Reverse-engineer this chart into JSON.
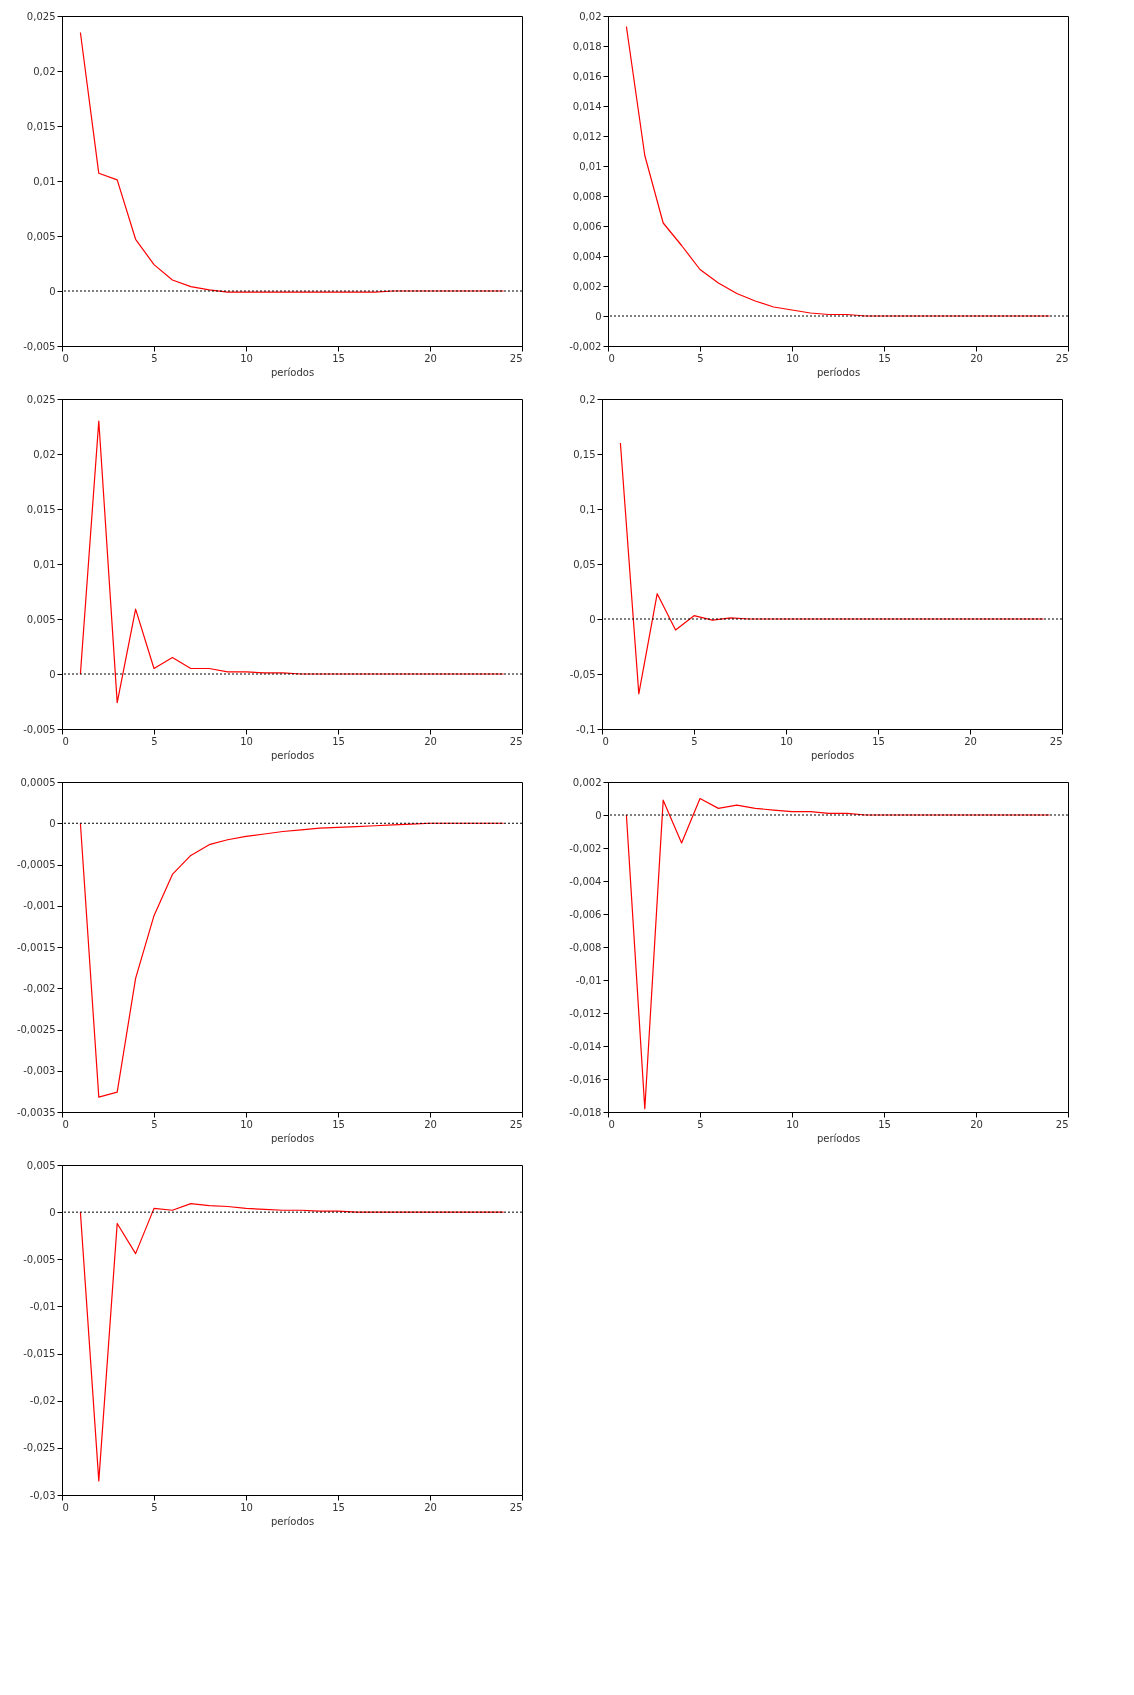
{
  "chart_data": [
    {
      "type": "line",
      "xlabel": "períodos",
      "x": [
        1,
        2,
        3,
        4,
        5,
        6,
        7,
        8,
        9,
        10,
        11,
        12,
        13,
        14,
        15,
        16,
        17,
        18,
        19,
        20,
        21,
        22,
        23,
        24
      ],
      "xlim": [
        0,
        25
      ],
      "xticks": [
        0,
        5,
        10,
        15,
        20,
        25
      ],
      "ylim": [
        -0.005,
        0.025
      ],
      "yticks": [
        {
          "value": -0.005,
          "label": "-0,005"
        },
        {
          "value": 0,
          "label": "0"
        },
        {
          "value": 0.005,
          "label": "0,005"
        },
        {
          "value": 0.01,
          "label": "0,01"
        },
        {
          "value": 0.015,
          "label": "0,015"
        },
        {
          "value": 0.02,
          "label": "0,02"
        },
        {
          "value": 0.025,
          "label": "0,025"
        }
      ],
      "ref_lines": [
        {
          "axis": "y",
          "value": 0,
          "line_style": "dotted",
          "color": "#000000"
        }
      ],
      "series": [
        {
          "color": "#ff0000",
          "values": [
            0.0235,
            0.0107,
            0.0101,
            0.0047,
            0.0024,
            0.001,
            0.0004,
            0.0001,
            -0.0001,
            -0.0001,
            -0.0001,
            -0.0001,
            -0.0001,
            -0.0001,
            -0.0001,
            -0.0001,
            -0.0001,
            0,
            0,
            0,
            0,
            0,
            0,
            0
          ]
        }
      ]
    },
    {
      "type": "line",
      "xlabel": "períodos",
      "x": [
        1,
        2,
        3,
        4,
        5,
        6,
        7,
        8,
        9,
        10,
        11,
        12,
        13,
        14,
        15,
        16,
        17,
        18,
        19,
        20,
        21,
        22,
        23,
        24
      ],
      "xlim": [
        0,
        25
      ],
      "xticks": [
        0,
        5,
        10,
        15,
        20,
        25
      ],
      "ylim": [
        -0.002,
        0.02
      ],
      "yticks": [
        {
          "value": -0.002,
          "label": "-0,002"
        },
        {
          "value": 0,
          "label": "0"
        },
        {
          "value": 0.002,
          "label": "0,002"
        },
        {
          "value": 0.004,
          "label": "0,004"
        },
        {
          "value": 0.006,
          "label": "0,006"
        },
        {
          "value": 0.008,
          "label": "0,008"
        },
        {
          "value": 0.01,
          "label": "0,01"
        },
        {
          "value": 0.012,
          "label": "0,012"
        },
        {
          "value": 0.014,
          "label": "0,014"
        },
        {
          "value": 0.016,
          "label": "0,016"
        },
        {
          "value": 0.018,
          "label": "0,018"
        },
        {
          "value": 0.02,
          "label": "0,02"
        }
      ],
      "ref_lines": [
        {
          "axis": "y",
          "value": 0,
          "line_style": "dotted",
          "color": "#000000"
        }
      ],
      "series": [
        {
          "color": "#ff0000",
          "values": [
            0.0193,
            0.0107,
            0.0062,
            0.0047,
            0.0031,
            0.0022,
            0.0015,
            0.001,
            0.0006,
            0.0004,
            0.0002,
            0.0001,
            0.0001,
            0,
            0,
            0,
            0,
            0,
            0,
            0,
            0,
            0,
            0,
            0
          ]
        }
      ]
    },
    {
      "type": "line",
      "xlabel": "períodos",
      "x": [
        1,
        2,
        3,
        4,
        5,
        6,
        7,
        8,
        9,
        10,
        11,
        12,
        13,
        14,
        15,
        16,
        17,
        18,
        19,
        20,
        21,
        22,
        23,
        24
      ],
      "xlim": [
        0,
        25
      ],
      "xticks": [
        0,
        5,
        10,
        15,
        20,
        25
      ],
      "ylim": [
        -0.005,
        0.025
      ],
      "yticks": [
        {
          "value": -0.005,
          "label": "-0,005"
        },
        {
          "value": 0,
          "label": "0"
        },
        {
          "value": 0.005,
          "label": "0,005"
        },
        {
          "value": 0.01,
          "label": "0,01"
        },
        {
          "value": 0.015,
          "label": "0,015"
        },
        {
          "value": 0.02,
          "label": "0,02"
        },
        {
          "value": 0.025,
          "label": "0,025"
        }
      ],
      "ref_lines": [
        {
          "axis": "y",
          "value": 0,
          "line_style": "dotted",
          "color": "#000000"
        }
      ],
      "series": [
        {
          "color": "#ff0000",
          "values": [
            0,
            0.023,
            -0.0026,
            0.0059,
            0.0005,
            0.0015,
            0.0005,
            0.0005,
            0.0002,
            0.0002,
            0.0001,
            0.0001,
            0,
            0,
            0,
            0,
            0,
            0,
            0,
            0,
            0,
            0,
            0,
            0
          ]
        }
      ]
    },
    {
      "type": "line",
      "xlabel": "períodos",
      "x": [
        1,
        2,
        3,
        4,
        5,
        6,
        7,
        8,
        9,
        10,
        11,
        12,
        13,
        14,
        15,
        16,
        17,
        18,
        19,
        20,
        21,
        22,
        23,
        24
      ],
      "xlim": [
        0,
        25
      ],
      "xticks": [
        0,
        5,
        10,
        15,
        20,
        25
      ],
      "ylim": [
        -0.1,
        0.2
      ],
      "yticks": [
        {
          "value": -0.1,
          "label": "-0,1"
        },
        {
          "value": -0.05,
          "label": "-0,05"
        },
        {
          "value": 0,
          "label": "0"
        },
        {
          "value": 0.05,
          "label": "0,05"
        },
        {
          "value": 0.1,
          "label": "0,1"
        },
        {
          "value": 0.15,
          "label": "0,15"
        },
        {
          "value": 0.2,
          "label": "0,2"
        }
      ],
      "ref_lines": [
        {
          "axis": "y",
          "value": 0,
          "line_style": "dotted",
          "color": "#000000"
        }
      ],
      "series": [
        {
          "color": "#ff0000",
          "values": [
            0.16,
            -0.068,
            0.023,
            -0.01,
            0.003,
            -0.001,
            0.001,
            0,
            0,
            0,
            0,
            0,
            0,
            0,
            0,
            0,
            0,
            0,
            0,
            0,
            0,
            0,
            0,
            0
          ]
        }
      ]
    },
    {
      "type": "line",
      "xlabel": "períodos",
      "x": [
        1,
        2,
        3,
        4,
        5,
        6,
        7,
        8,
        9,
        10,
        11,
        12,
        13,
        14,
        15,
        16,
        17,
        18,
        19,
        20,
        21,
        22,
        23,
        24
      ],
      "xlim": [
        0,
        25
      ],
      "xticks": [
        0,
        5,
        10,
        15,
        20,
        25
      ],
      "ylim": [
        -0.0035,
        0.0005
      ],
      "yticks": [
        {
          "value": -0.0035,
          "label": "-0,0035"
        },
        {
          "value": -0.003,
          "label": "-0,003"
        },
        {
          "value": -0.0025,
          "label": "-0,0025"
        },
        {
          "value": -0.002,
          "label": "-0,002"
        },
        {
          "value": -0.0015,
          "label": "-0,0015"
        },
        {
          "value": -0.001,
          "label": "-0,001"
        },
        {
          "value": -0.0005,
          "label": "-0,0005"
        },
        {
          "value": 0,
          "label": "0"
        },
        {
          "value": 0.0005,
          "label": "0,0005"
        }
      ],
      "ref_lines": [
        {
          "axis": "y",
          "value": 0,
          "line_style": "dotted",
          "color": "#000000"
        }
      ],
      "series": [
        {
          "color": "#ff0000",
          "values": [
            0,
            -0.00332,
            -0.00326,
            -0.00188,
            -0.00112,
            -0.00062,
            -0.00039,
            -0.00026,
            -0.0002,
            -0.00016,
            -0.00013,
            -0.0001,
            -8e-05,
            -6e-05,
            -5e-05,
            -4e-05,
            -3e-05,
            -2e-05,
            -1e-05,
            0,
            0,
            0,
            0,
            0
          ]
        }
      ]
    },
    {
      "type": "line",
      "xlabel": "períodos",
      "x": [
        1,
        2,
        3,
        4,
        5,
        6,
        7,
        8,
        9,
        10,
        11,
        12,
        13,
        14,
        15,
        16,
        17,
        18,
        19,
        20,
        21,
        22,
        23,
        24
      ],
      "xlim": [
        0,
        25
      ],
      "xticks": [
        0,
        5,
        10,
        15,
        20,
        25
      ],
      "ylim": [
        -0.018,
        0.002
      ],
      "yticks": [
        {
          "value": -0.018,
          "label": "-0,018"
        },
        {
          "value": -0.016,
          "label": "-0,016"
        },
        {
          "value": -0.014,
          "label": "-0,014"
        },
        {
          "value": -0.012,
          "label": "-0,012"
        },
        {
          "value": -0.01,
          "label": "-0,01"
        },
        {
          "value": -0.008,
          "label": "-0,008"
        },
        {
          "value": -0.006,
          "label": "-0,006"
        },
        {
          "value": -0.004,
          "label": "-0,004"
        },
        {
          "value": -0.002,
          "label": "-0,002"
        },
        {
          "value": 0,
          "label": "0"
        },
        {
          "value": 0.002,
          "label": "0,002"
        }
      ],
      "ref_lines": [
        {
          "axis": "y",
          "value": 0,
          "line_style": "dotted",
          "color": "#000000"
        }
      ],
      "series": [
        {
          "color": "#ff0000",
          "values": [
            0,
            -0.0178,
            0.0009,
            -0.0017,
            0.001,
            0.0004,
            0.0006,
            0.0004,
            0.0003,
            0.0002,
            0.0002,
            0.0001,
            0.0001,
            0,
            0,
            0,
            0,
            0,
            0,
            0,
            0,
            0,
            0,
            0
          ]
        }
      ]
    },
    {
      "type": "line",
      "xlabel": "períodos",
      "x": [
        1,
        2,
        3,
        4,
        5,
        6,
        7,
        8,
        9,
        10,
        11,
        12,
        13,
        14,
        15,
        16,
        17,
        18,
        19,
        20,
        21,
        22,
        23,
        24
      ],
      "xlim": [
        0,
        25
      ],
      "xticks": [
        0,
        5,
        10,
        15,
        20,
        25
      ],
      "ylim": [
        -0.03,
        0.005
      ],
      "yticks": [
        {
          "value": -0.03,
          "label": "-0,03"
        },
        {
          "value": -0.025,
          "label": "-0,025"
        },
        {
          "value": -0.02,
          "label": "-0,02"
        },
        {
          "value": -0.015,
          "label": "-0,015"
        },
        {
          "value": -0.01,
          "label": "-0,01"
        },
        {
          "value": -0.005,
          "label": "-0,005"
        },
        {
          "value": 0,
          "label": "0"
        },
        {
          "value": 0.005,
          "label": "0,005"
        }
      ],
      "ref_lines": [
        {
          "axis": "y",
          "value": 0,
          "line_style": "dotted",
          "color": "#000000"
        }
      ],
      "series": [
        {
          "color": "#ff0000",
          "values": [
            0,
            -0.0285,
            -0.0012,
            -0.0044,
            0.0004,
            0.0002,
            0.0009,
            0.0007,
            0.0006,
            0.0004,
            0.0003,
            0.0002,
            0.0002,
            0.0001,
            0.0001,
            0,
            0,
            0,
            0,
            0,
            0,
            0,
            0,
            0
          ]
        }
      ]
    }
  ]
}
